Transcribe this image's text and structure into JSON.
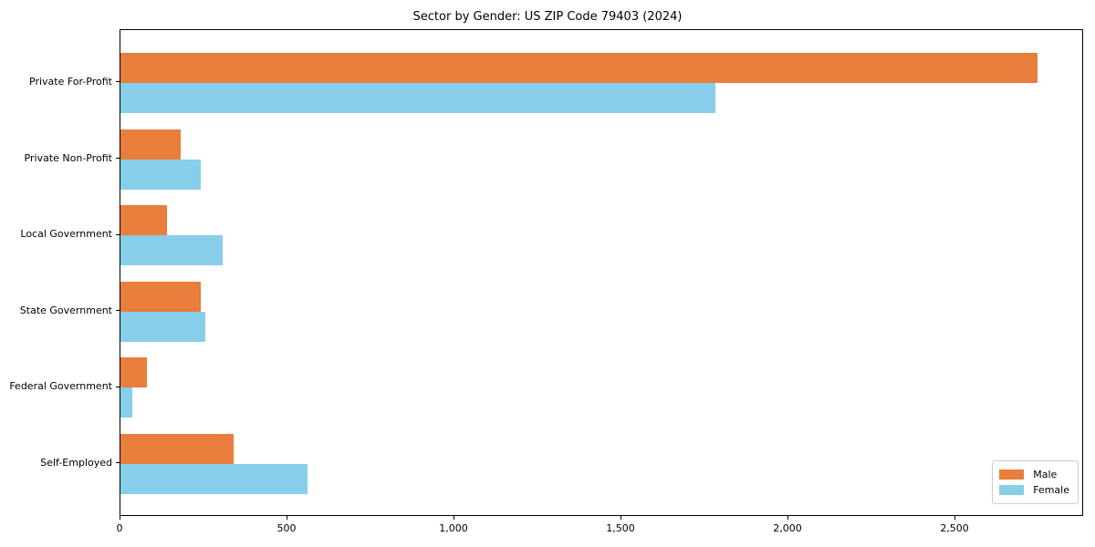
{
  "title": "Sector by Gender: US ZIP Code 79403 (2024)",
  "chart_data": {
    "type": "bar",
    "orientation": "horizontal",
    "title": "Sector by Gender: US ZIP Code 79403 (2024)",
    "categories": [
      "Private For-Profit",
      "Private Non-Profit",
      "Local Government",
      "State Government",
      "Federal Government",
      "Self-Employed"
    ],
    "series": [
      {
        "name": "Male",
        "color": "#e87d3c",
        "values": [
          2745,
          180,
          140,
          240,
          80,
          340
        ]
      },
      {
        "name": "Female",
        "color": "#87ceeb",
        "values": [
          1780,
          240,
          305,
          255,
          35,
          560
        ]
      }
    ],
    "xlabel": "",
    "ylabel": "",
    "xlim": [
      0,
      2885
    ],
    "xticks": [
      0,
      500,
      1000,
      1500,
      2000,
      2500
    ],
    "grid": false,
    "legend_position": "lower right"
  },
  "colors": {
    "male": "#e87d3c",
    "female": "#87ceeb",
    "axis": "#000000",
    "legend_border": "#cccccc",
    "background": "#ffffff"
  }
}
